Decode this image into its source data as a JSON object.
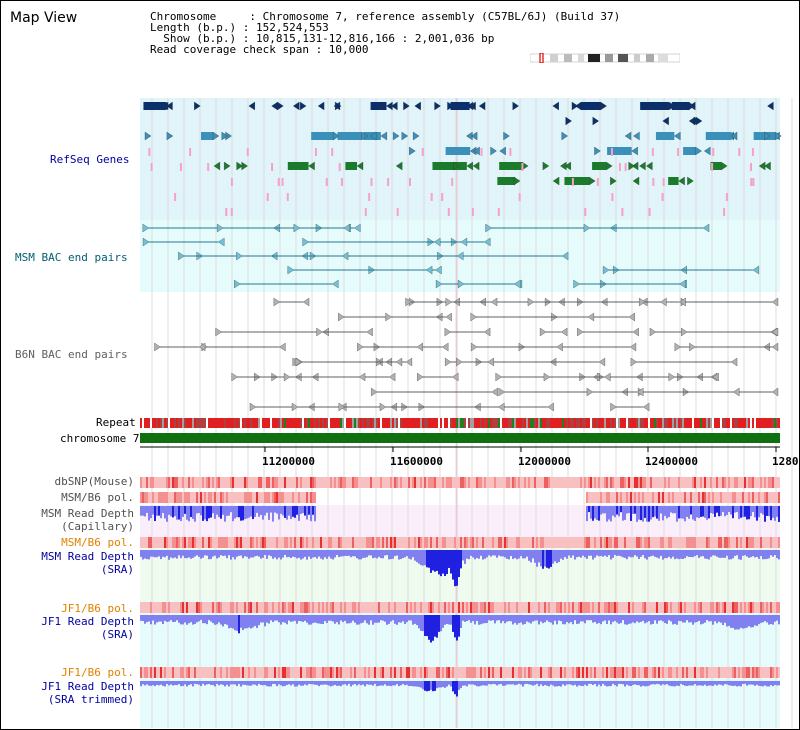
{
  "view": {
    "title": "Map View",
    "info_lines": [
      "Chromosome     : Chromosome 7, reference assembly (C57BL/6J) (Build 37)",
      "Length (b.p.) : 152,524,553",
      "  Show (b.p.) : 10,815,131-12,816,166 : 2,001,036 bp",
      "Read coverage check span : 10,000"
    ]
  },
  "tracks": {
    "refseq": "RefSeq Genes",
    "msm_bac": "MSM BAC end pairs",
    "b6n_bac": "B6N BAC end pairs",
    "repeat": "Repeat",
    "chromosome": "chromosome 7",
    "dbsnp": "dbSNP(Mouse)",
    "msm_b6_pol_1": "MSM/B6 pol.",
    "msm_read_depth_cap_1": "MSM Read Depth",
    "msm_read_depth_cap_2": "(Capillary)",
    "msm_b6_pol_2": "MSM/B6 pol.",
    "msm_read_depth_sra_1": "MSM Read Depth",
    "msm_read_depth_sra_2": "(SRA)",
    "jf1_b6_pol_1": "JF1/B6 pol.",
    "jf1_read_depth_sra_1": "JF1 Read Depth",
    "jf1_read_depth_sra_2": "(SRA)",
    "jf1_b6_pol_2": "JF1/B6 pol.",
    "jf1_read_depth_trim_1": "JF1 Read Depth",
    "jf1_read_depth_trim_2": "(SRA trimmed)"
  },
  "axis": {
    "ticks": [
      "11200000",
      "11600000",
      "12000000",
      "12400000",
      "1280"
    ]
  },
  "colors": {
    "refseq_bg": "#e0f4fa",
    "msm_bac_bg": "#e6fbfb",
    "pol_pink": "#f8c0c0",
    "pol_red": "#e83030",
    "depth_blue": "#8080f0",
    "depth_dark": "#2020e0",
    "chrom_green": "#107010"
  }
}
